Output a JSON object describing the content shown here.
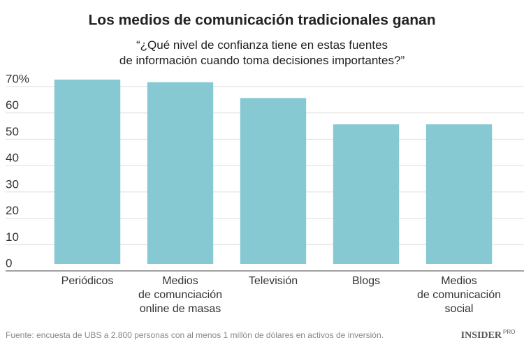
{
  "chart_data": {
    "type": "bar",
    "title": "Los medios de comunicación tradicionales ganan",
    "subtitle": "“¿Qué nivel de confianza tiene en estas fuentes\nde información cuando toma decisiones importantes?”",
    "categories": [
      "Periódicos",
      "Medios\nde comunciación\nonline de masas",
      "Televisión",
      "Blogs",
      "Medios\nde comunicación\nsocial"
    ],
    "values": [
      70,
      69,
      63,
      53,
      53
    ],
    "color": "#86c9d3",
    "ylim": [
      0,
      70
    ],
    "yticks": [
      0,
      10,
      20,
      30,
      40,
      50,
      60,
      {
        "value": 70,
        "label": "70%"
      }
    ],
    "grid": true,
    "source": "Fuente: encuesta de UBS a 2.800 personas con al menos 1 millón de dólares en activos de inversión.",
    "logo": "INSIDER",
    "logo_sup": "PRO"
  }
}
